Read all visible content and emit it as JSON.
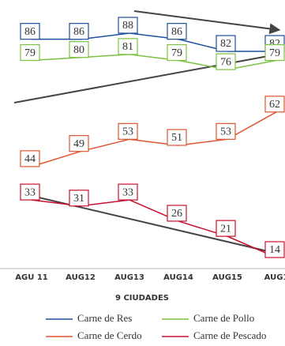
{
  "chart_data": {
    "type": "line",
    "x_label": "9 CIUDADES",
    "categories": [
      "AGU 11",
      "AUG12",
      "AUG13",
      "AUG14",
      "AUG15",
      "AUG1"
    ],
    "series": [
      {
        "name": "Carne de Res",
        "color": "#1f4e9c",
        "values": [
          86,
          86,
          88,
          86,
          82,
          82
        ]
      },
      {
        "name": "Carne de Pollo",
        "color": "#7dc142",
        "values": [
          79,
          80,
          81,
          79,
          76,
          79
        ]
      },
      {
        "name": "Carne de Cerdo",
        "color": "#e0552f",
        "values": [
          44,
          49,
          53,
          51,
          53,
          62
        ]
      },
      {
        "name": "Carne de Pescado",
        "color": "#c8102e",
        "values": [
          33,
          31,
          33,
          26,
          21,
          14
        ]
      }
    ]
  }
}
